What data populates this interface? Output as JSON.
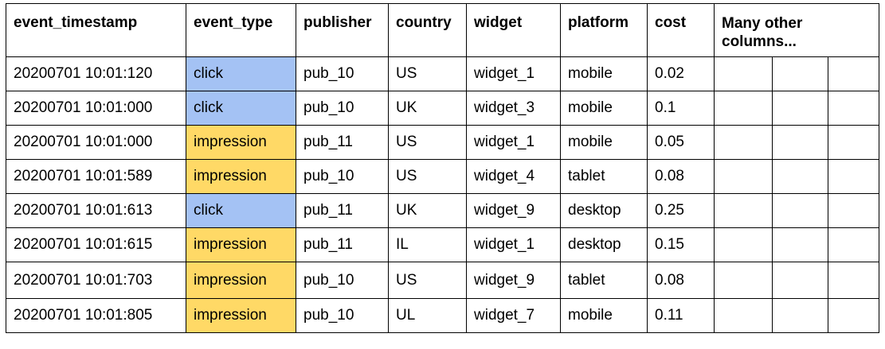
{
  "columns": {
    "event_timestamp": "event_timestamp",
    "event_type": "event_type",
    "publisher": "publisher",
    "country": "country",
    "widget": "widget",
    "platform": "platform",
    "cost": "cost",
    "other": "Many other columns..."
  },
  "colors": {
    "click": "#a4c2f4",
    "impression": "#ffd966",
    "grid": "#000000"
  },
  "rows": [
    {
      "event_timestamp": "20200701 10:01:120",
      "event_type": "click",
      "publisher": "pub_10",
      "country": "US",
      "widget": "widget_1",
      "platform": "mobile",
      "cost": "0.02"
    },
    {
      "event_timestamp": "20200701 10:01:000",
      "event_type": "click",
      "publisher": "pub_10",
      "country": "UK",
      "widget": "widget_3",
      "platform": "mobile",
      "cost": "0.1"
    },
    {
      "event_timestamp": "20200701 10:01:000",
      "event_type": "impression",
      "publisher": "pub_11",
      "country": "US",
      "widget": "widget_1",
      "platform": "mobile",
      "cost": "0.05"
    },
    {
      "event_timestamp": "20200701 10:01:589",
      "event_type": "impression",
      "publisher": "pub_10",
      "country": "US",
      "widget": "widget_4",
      "platform": "tablet",
      "cost": "0.08"
    },
    {
      "event_timestamp": "20200701 10:01:613",
      "event_type": "click",
      "publisher": "pub_11",
      "country": "UK",
      "widget": "widget_9",
      "platform": "desktop",
      "cost": "0.25"
    },
    {
      "event_timestamp": "20200701 10:01:615",
      "event_type": "impression",
      "publisher": "pub_11",
      "country": "IL",
      "widget": "widget_1",
      "platform": "desktop",
      "cost": "0.15"
    },
    {
      "event_timestamp": "20200701 10:01:703",
      "event_type": "impression",
      "publisher": "pub_10",
      "country": "US",
      "widget": "widget_9",
      "platform": "tablet",
      "cost": "0.08"
    },
    {
      "event_timestamp": "20200701 10:01:805",
      "event_type": "impression",
      "publisher": "pub_10",
      "country": "UL",
      "widget": "widget_7",
      "platform": "mobile",
      "cost": "0.11"
    }
  ]
}
